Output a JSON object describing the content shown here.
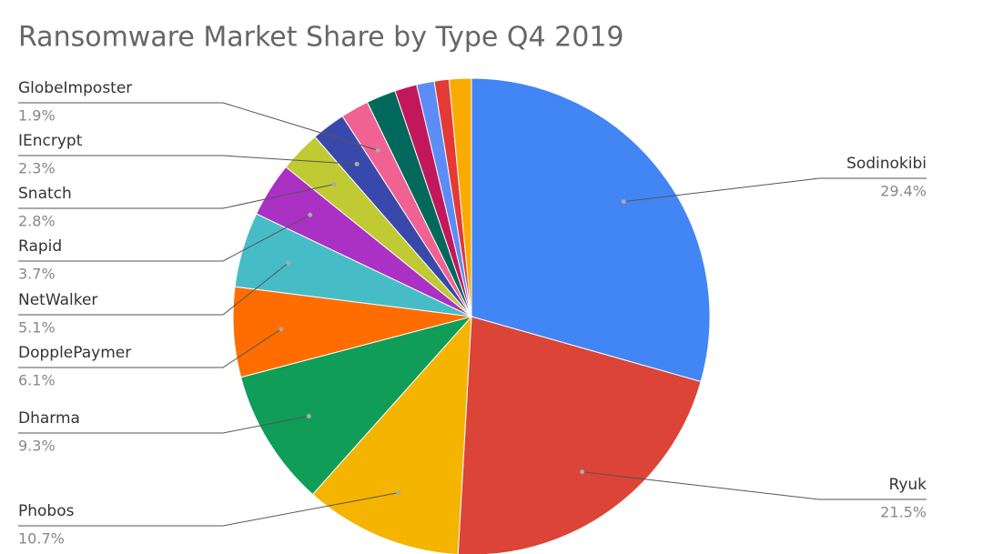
{
  "chart_data": {
    "type": "pie",
    "title": "Ransomware Market Share by Type Q4 2019",
    "categories": [
      "Sodinokibi",
      "Ryuk",
      "Phobos",
      "Dharma",
      "DopplePaymer",
      "NetWalker",
      "Rapid",
      "Snatch",
      "IEncrypt",
      "GlobeImposter",
      null,
      null,
      null,
      null,
      null
    ],
    "values": [
      29.4,
      21.5,
      10.7,
      9.3,
      6.1,
      5.1,
      3.7,
      2.8,
      2.3,
      1.9,
      2.0,
      1.5,
      1.2,
      1.0,
      1.5
    ],
    "value_labels": [
      "29.4%",
      "21.5%",
      "10.7%",
      "9.3%",
      "6.1%",
      "5.1%",
      "3.7%",
      "2.8%",
      "2.3%",
      "1.9%",
      null,
      null,
      null,
      null,
      null
    ],
    "colors": [
      "#4285f4",
      "#db4437",
      "#f4b400",
      "#0f9d58",
      "#ff6d00",
      "#46bdc6",
      "#ab30c4",
      "#c0ca33",
      "#3949ab",
      "#f06292",
      "#00695c",
      "#c2185b",
      "#5c8df6",
      "#e53935",
      "#f9ab00"
    ]
  }
}
